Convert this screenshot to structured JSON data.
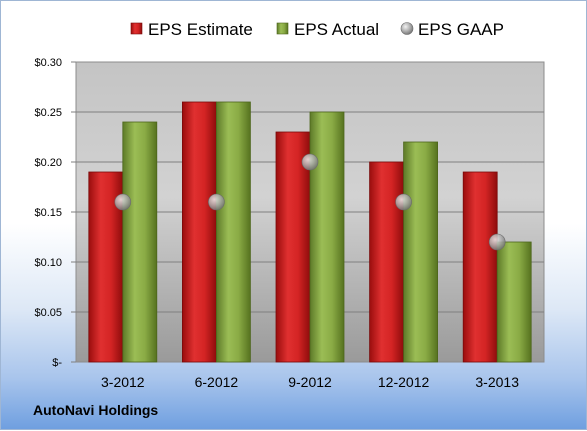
{
  "footer": {
    "company": "AutoNavi Holdings"
  },
  "colors": {
    "estimate": "#cc1f1f",
    "actual": "#7d9e3c",
    "gaap": "#b5b5b5"
  },
  "chart_data": {
    "type": "bar",
    "title": "",
    "xlabel": "",
    "ylabel": "",
    "categories": [
      "3-2012",
      "6-2012",
      "9-2012",
      "12-2012",
      "3-2013"
    ],
    "series": [
      {
        "name": "EPS Estimate",
        "type": "bar",
        "values": [
          0.19,
          0.26,
          0.23,
          0.2,
          0.19
        ]
      },
      {
        "name": "EPS Actual",
        "type": "bar",
        "values": [
          0.24,
          0.26,
          0.25,
          0.22,
          0.12
        ]
      },
      {
        "name": "EPS GAAP",
        "type": "marker",
        "values": [
          0.16,
          0.16,
          0.2,
          0.16,
          0.12
        ]
      }
    ],
    "ylim": [
      0,
      0.3
    ],
    "yticks": [
      0,
      0.05,
      0.1,
      0.15,
      0.2,
      0.25,
      0.3
    ],
    "ytick_labels": [
      "$-",
      "$0.05",
      "$0.10",
      "$0.15",
      "$0.20",
      "$0.25",
      "$0.30"
    ],
    "grid": true,
    "legend_position": "top"
  }
}
